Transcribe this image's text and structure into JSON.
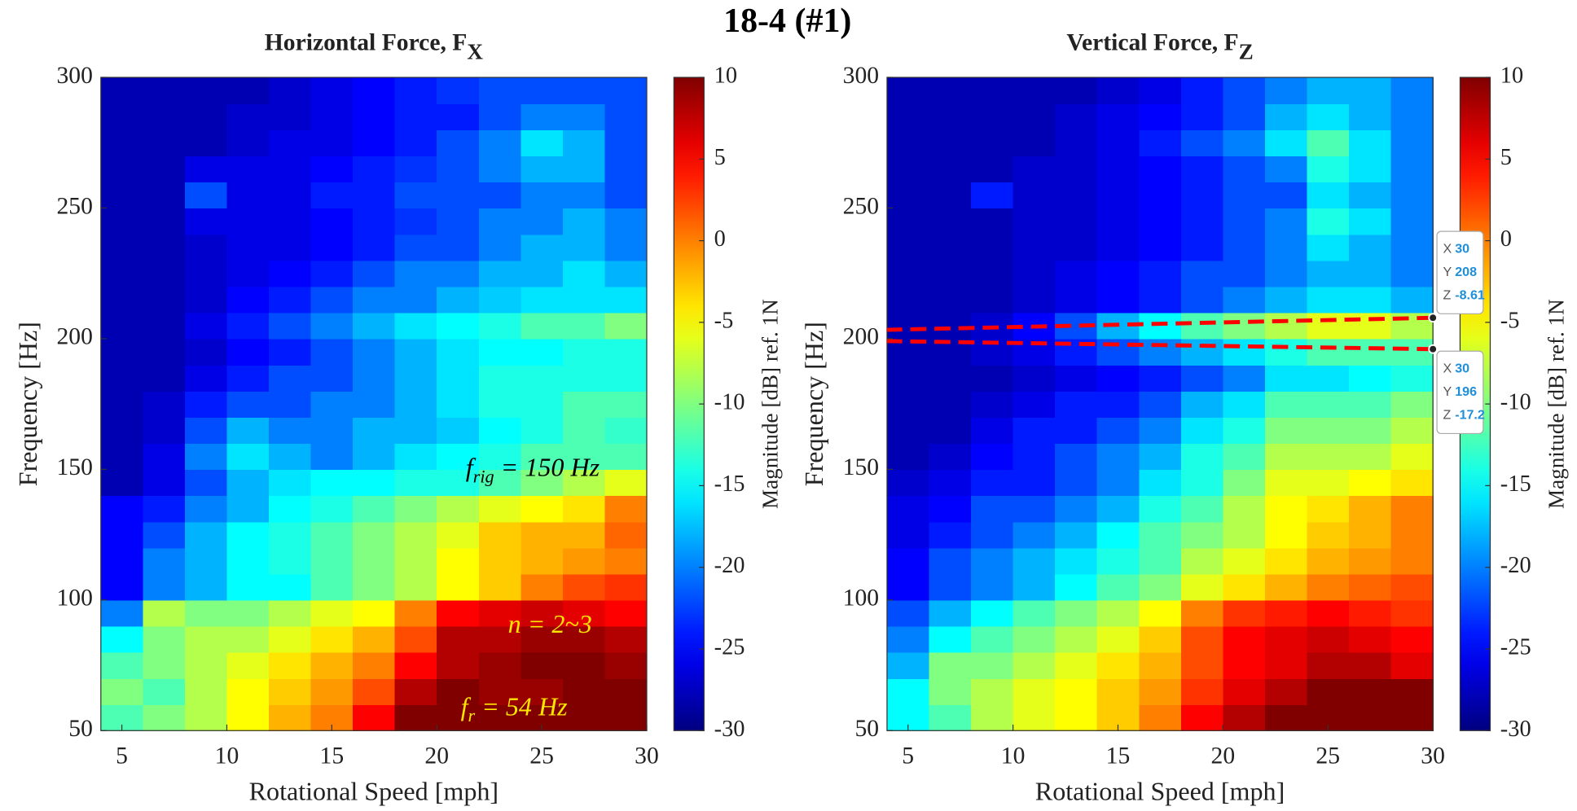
{
  "title": "18-4 (#1)",
  "chart_data": [
    {
      "type": "heatmap",
      "title": "Horizontal Force, F",
      "title_sub": "X",
      "x_label": "Rotational Speed [mph]",
      "y_label": "Frequency [Hz]",
      "x": [
        5,
        7,
        9,
        11,
        13,
        15,
        17,
        19,
        21,
        23,
        25,
        27,
        29
      ],
      "y": [
        55,
        65,
        75,
        85,
        95,
        105,
        115,
        125,
        135,
        145,
        155,
        165,
        175,
        185,
        195,
        205,
        215,
        225,
        235,
        245,
        255,
        265,
        275,
        285,
        295
      ],
      "z": [
        [
          -12,
          -10,
          -8,
          -5,
          -2,
          0,
          5,
          10,
          10,
          10,
          10,
          10,
          10
        ],
        [
          -10,
          -12,
          -8,
          -5,
          -3,
          -1,
          2,
          8,
          10,
          9,
          9,
          10,
          10
        ],
        [
          -12,
          -10,
          -8,
          -6,
          -4,
          -2,
          0,
          5,
          8,
          9,
          10,
          10,
          9
        ],
        [
          -15,
          -10,
          -8,
          -8,
          -6,
          -4,
          -2,
          2,
          8,
          8,
          9,
          9,
          8
        ],
        [
          -20,
          -8,
          -10,
          -10,
          -8,
          -6,
          -5,
          0,
          5,
          6,
          7,
          6,
          5
        ],
        [
          -25,
          -20,
          -18,
          -15,
          -15,
          -12,
          -10,
          -8,
          -5,
          -3,
          0,
          2,
          3
        ],
        [
          -25,
          -20,
          -18,
          -15,
          -14,
          -12,
          -10,
          -8,
          -5,
          -3,
          -2,
          -1,
          0
        ],
        [
          -25,
          -22,
          -18,
          -15,
          -14,
          -12,
          -10,
          -8,
          -6,
          -3,
          -2,
          -2,
          1
        ],
        [
          -25,
          -24,
          -20,
          -18,
          -15,
          -14,
          -12,
          -10,
          -8,
          -6,
          -5,
          -4,
          0
        ],
        [
          -28,
          -26,
          -22,
          -18,
          -16,
          -15,
          -15,
          -14,
          -14,
          -12,
          -10,
          -8,
          -6
        ],
        [
          -28,
          -26,
          -20,
          -16,
          -18,
          -20,
          -18,
          -16,
          -15,
          -14,
          -12,
          -12,
          -12
        ],
        [
          -28,
          -27,
          -22,
          -18,
          -20,
          -20,
          -18,
          -18,
          -17,
          -15,
          -14,
          -12,
          -13
        ],
        [
          -28,
          -27,
          -24,
          -22,
          -22,
          -20,
          -20,
          -18,
          -16,
          -14,
          -14,
          -12,
          -12
        ],
        [
          -28,
          -28,
          -26,
          -24,
          -22,
          -22,
          -20,
          -18,
          -16,
          -14,
          -14,
          -14,
          -14
        ],
        [
          -28,
          -28,
          -27,
          -25,
          -24,
          -22,
          -20,
          -18,
          -16,
          -15,
          -15,
          -14,
          -14
        ],
        [
          -28,
          -28,
          -26,
          -24,
          -22,
          -20,
          -18,
          -16,
          -15,
          -14,
          -12,
          -12,
          -10
        ],
        [
          -28,
          -28,
          -27,
          -25,
          -24,
          -22,
          -20,
          -20,
          -18,
          -17,
          -16,
          -16,
          -16
        ],
        [
          -28,
          -28,
          -27,
          -26,
          -25,
          -24,
          -22,
          -20,
          -20,
          -18,
          -18,
          -16,
          -18
        ],
        [
          -28,
          -28,
          -27,
          -26,
          -26,
          -25,
          -24,
          -22,
          -22,
          -20,
          -18,
          -18,
          -20
        ],
        [
          -28,
          -28,
          -26,
          -26,
          -26,
          -25,
          -24,
          -23,
          -22,
          -20,
          -20,
          -18,
          -20
        ],
        [
          -28,
          -28,
          -22,
          -26,
          -26,
          -24,
          -24,
          -22,
          -22,
          -22,
          -20,
          -20,
          -22
        ],
        [
          -28,
          -28,
          -26,
          -26,
          -26,
          -25,
          -24,
          -23,
          -22,
          -20,
          -18,
          -18,
          -22
        ],
        [
          -28,
          -28,
          -28,
          -27,
          -26,
          -26,
          -25,
          -24,
          -22,
          -20,
          -16,
          -18,
          -22
        ],
        [
          -28,
          -28,
          -28,
          -27,
          -27,
          -26,
          -25,
          -24,
          -24,
          -22,
          -20,
          -20,
          -22
        ],
        [
          -28,
          -28,
          -28,
          -28,
          -27,
          -26,
          -25,
          -24,
          -23,
          -22,
          -22,
          -22,
          -22
        ]
      ],
      "xlim": [
        4,
        30
      ],
      "xticks": [
        5,
        10,
        15,
        20,
        25,
        30
      ],
      "ylim": [
        50,
        300
      ],
      "yticks": [
        50,
        100,
        150,
        200,
        250,
        300
      ],
      "colormap": "jet",
      "clim": [
        -30,
        10
      ],
      "cticks": [
        -30,
        -25,
        -20,
        -15,
        -10,
        -5,
        0,
        5,
        10
      ],
      "colorbar_label": "Magnitude [dB] ref. 1N",
      "annotations": [
        {
          "base": "f",
          "sub": "rig",
          "text": " = 150 Hz",
          "color": "#000000"
        },
        {
          "base": "n",
          "text": " = 2~3",
          "color": "#ffe600"
        },
        {
          "base": "f",
          "sub": "r",
          "text": " = 54 Hz",
          "color": "#ffe600"
        }
      ]
    },
    {
      "type": "heatmap",
      "title": "Vertical Force, F",
      "title_sub": "Z",
      "x_label": "Rotational Speed [mph]",
      "y_label": "Frequency [Hz]",
      "x": [
        5,
        7,
        9,
        11,
        13,
        15,
        17,
        19,
        21,
        23,
        25,
        27,
        29
      ],
      "y": [
        55,
        65,
        75,
        85,
        95,
        105,
        115,
        125,
        135,
        145,
        155,
        165,
        175,
        185,
        195,
        205,
        215,
        225,
        235,
        245,
        255,
        265,
        275,
        285,
        295
      ],
      "z": [
        [
          -15,
          -12,
          -8,
          -6,
          -5,
          -3,
          0,
          5,
          8,
          10,
          10,
          10,
          10
        ],
        [
          -15,
          -10,
          -8,
          -6,
          -5,
          -3,
          -1,
          3,
          6,
          8,
          10,
          10,
          10
        ],
        [
          -18,
          -10,
          -10,
          -8,
          -6,
          -4,
          -2,
          2,
          5,
          6,
          8,
          8,
          6
        ],
        [
          -20,
          -15,
          -12,
          -10,
          -8,
          -6,
          -3,
          2,
          5,
          6,
          7,
          6,
          5
        ],
        [
          -22,
          -18,
          -15,
          -12,
          -10,
          -8,
          -5,
          0,
          3,
          4,
          5,
          4,
          3
        ],
        [
          -25,
          -22,
          -20,
          -18,
          -15,
          -12,
          -10,
          -6,
          -4,
          -2,
          0,
          1,
          2
        ],
        [
          -25,
          -22,
          -20,
          -18,
          -16,
          -14,
          -12,
          -8,
          -6,
          -4,
          -2,
          -1,
          0
        ],
        [
          -26,
          -24,
          -22,
          -20,
          -18,
          -15,
          -12,
          -10,
          -8,
          -5,
          -3,
          -2,
          0
        ],
        [
          -26,
          -25,
          -22,
          -22,
          -20,
          -18,
          -14,
          -12,
          -8,
          -5,
          -4,
          -2,
          0
        ],
        [
          -27,
          -26,
          -24,
          -24,
          -22,
          -20,
          -16,
          -14,
          -10,
          -6,
          -6,
          -5,
          -4
        ],
        [
          -28,
          -27,
          -25,
          -24,
          -22,
          -20,
          -18,
          -14,
          -12,
          -8,
          -8,
          -8,
          -6
        ],
        [
          -28,
          -28,
          -26,
          -24,
          -24,
          -22,
          -20,
          -16,
          -14,
          -10,
          -10,
          -10,
          -8
        ],
        [
          -28,
          -28,
          -27,
          -26,
          -24,
          -24,
          -22,
          -18,
          -16,
          -12,
          -12,
          -12,
          -10
        ],
        [
          -28,
          -28,
          -28,
          -27,
          -26,
          -25,
          -24,
          -22,
          -20,
          -16,
          -16,
          -15,
          -14
        ],
        [
          -28,
          -28,
          -27,
          -26,
          -24,
          -22,
          -20,
          -18,
          -16,
          -14,
          -12,
          -12,
          -12
        ],
        [
          -28,
          -28,
          -27,
          -25,
          -22,
          -18,
          -15,
          -12,
          -10,
          -8,
          -6,
          -6,
          -8
        ],
        [
          -28,
          -28,
          -28,
          -27,
          -26,
          -25,
          -24,
          -22,
          -20,
          -18,
          -16,
          -16,
          -18
        ],
        [
          -28,
          -28,
          -28,
          -27,
          -26,
          -25,
          -24,
          -22,
          -22,
          -20,
          -18,
          -18,
          -20
        ],
        [
          -28,
          -28,
          -28,
          -27,
          -27,
          -26,
          -25,
          -24,
          -22,
          -20,
          -16,
          -18,
          -20
        ],
        [
          -28,
          -28,
          -28,
          -27,
          -27,
          -26,
          -25,
          -24,
          -22,
          -20,
          -14,
          -16,
          -20
        ],
        [
          -28,
          -28,
          -24,
          -27,
          -27,
          -26,
          -25,
          -24,
          -22,
          -22,
          -16,
          -18,
          -20
        ],
        [
          -28,
          -28,
          -28,
          -27,
          -27,
          -26,
          -25,
          -24,
          -22,
          -20,
          -14,
          -16,
          -20
        ],
        [
          -28,
          -28,
          -28,
          -28,
          -27,
          -26,
          -24,
          -22,
          -20,
          -16,
          -12,
          -16,
          -20
        ],
        [
          -28,
          -28,
          -28,
          -28,
          -27,
          -26,
          -25,
          -24,
          -22,
          -18,
          -16,
          -18,
          -20
        ],
        [
          -28,
          -28,
          -28,
          -28,
          -28,
          -27,
          -26,
          -24,
          -22,
          -20,
          -18,
          -18,
          -20
        ]
      ],
      "xlim": [
        4,
        30
      ],
      "xticks": [
        5,
        10,
        15,
        20,
        25,
        30
      ],
      "ylim": [
        50,
        300
      ],
      "yticks": [
        50,
        100,
        150,
        200,
        250,
        300
      ],
      "colormap": "jet",
      "clim": [
        -30,
        10
      ],
      "cticks": [
        -30,
        -25,
        -20,
        -15,
        -10,
        -5,
        0,
        5,
        10
      ],
      "colorbar_label": "Magnitude [dB] ref. 1N",
      "datatips": [
        {
          "labels": [
            "X",
            "Y",
            "Z"
          ],
          "values": [
            30,
            208,
            -8.61
          ]
        },
        {
          "labels": [
            "X",
            "Y",
            "Z"
          ],
          "values": [
            30,
            196,
            -17.2
          ]
        }
      ],
      "datatip_line_color": "#ff0000"
    }
  ]
}
